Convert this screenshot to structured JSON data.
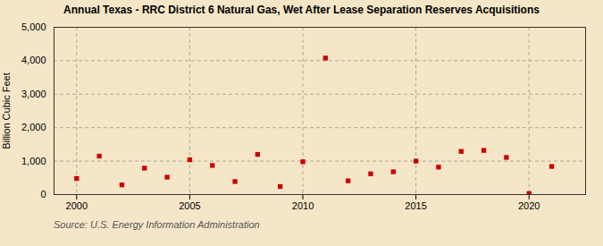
{
  "chart_data": {
    "type": "scatter",
    "title": "Annual Texas - RRC District 6 Natural Gas, Wet After Lease Separation Reserves Acquisitions",
    "ylabel": "Billion Cubic Feet",
    "source": "Source: U.S. Energy Information Administration",
    "x": [
      2000,
      2001,
      2002,
      2003,
      2004,
      2005,
      2006,
      2007,
      2008,
      2009,
      2010,
      2011,
      2012,
      2013,
      2014,
      2015,
      2016,
      2017,
      2018,
      2019,
      2020,
      2021
    ],
    "values": [
      480,
      1150,
      290,
      790,
      520,
      1040,
      870,
      390,
      1200,
      240,
      980,
      4080,
      410,
      620,
      680,
      1000,
      820,
      1290,
      1320,
      1110,
      30,
      840
    ],
    "color": "#cc0000",
    "marker": "square",
    "xlim": [
      1999,
      2022.5
    ],
    "ylim": [
      0,
      5000
    ],
    "xticks": [
      2000,
      2005,
      2010,
      2015,
      2020
    ],
    "yticks": [
      0,
      {
        "value": 1000,
        "label": "1,000"
      },
      {
        "value": 2000,
        "label": "2,000"
      },
      {
        "value": 3000,
        "label": "3,000"
      },
      {
        "value": 4000,
        "label": "4,000"
      },
      {
        "value": 5000,
        "label": "5,000"
      }
    ],
    "grid": true
  }
}
